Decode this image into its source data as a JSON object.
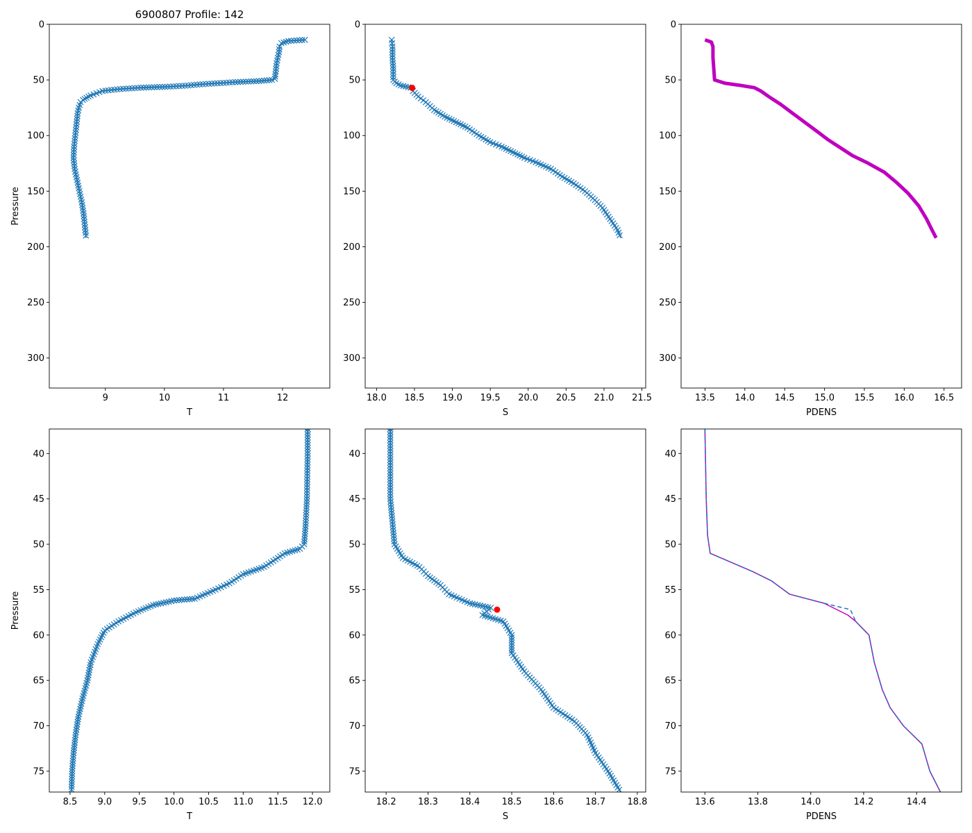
{
  "figure_title": "6900807 Profile: 142",
  "colors": {
    "series": "#1f77b4",
    "pdens": "#bf00bf",
    "marker": "#ff0000"
  },
  "chart_data": [
    {
      "type": "line",
      "title": "6900807 Profile: 142",
      "xlabel": "T",
      "ylabel": "Pressure",
      "xlim": [
        8.05,
        12.8
      ],
      "ylim": [
        327,
        0
      ],
      "y_inverted": true,
      "xticks": [
        9,
        10,
        11,
        12
      ],
      "xtick_labels": [
        "9",
        "10",
        "11",
        "12"
      ],
      "yticks": [
        0,
        50,
        100,
        150,
        200,
        250,
        300
      ],
      "ytick_labels": [
        "0",
        "50",
        "100",
        "150",
        "200",
        "250",
        "300"
      ],
      "series": [
        {
          "name": "T",
          "marker": "x",
          "color": "#1f77b4",
          "points": [
            [
              12.38,
              14
            ],
            [
              12.1,
              15
            ],
            [
              11.98,
              17
            ],
            [
              11.95,
              20
            ],
            [
              11.94,
              25
            ],
            [
              11.92,
              30
            ],
            [
              11.9,
              35
            ],
            [
              11.89,
              40
            ],
            [
              11.88,
              45
            ],
            [
              11.87,
              49
            ],
            [
              11.82,
              50
            ],
            [
              11.6,
              51
            ],
            [
              11.2,
              52
            ],
            [
              10.9,
              53
            ],
            [
              10.6,
              54
            ],
            [
              10.4,
              55
            ],
            [
              10.1,
              56
            ],
            [
              9.6,
              57
            ],
            [
              9.3,
              58
            ],
            [
              9.1,
              59
            ],
            [
              8.95,
              60
            ],
            [
              8.85,
              62
            ],
            [
              8.75,
              64
            ],
            [
              8.68,
              66
            ],
            [
              8.62,
              68
            ],
            [
              8.58,
              70
            ],
            [
              8.55,
              75
            ],
            [
              8.53,
              80
            ],
            [
              8.52,
              85
            ],
            [
              8.51,
              90
            ],
            [
              8.5,
              95
            ],
            [
              8.49,
              100
            ],
            [
              8.47,
              110
            ],
            [
              8.46,
              120
            ],
            [
              8.48,
              130
            ],
            [
              8.52,
              140
            ],
            [
              8.56,
              150
            ],
            [
              8.6,
              160
            ],
            [
              8.63,
              170
            ],
            [
              8.65,
              180
            ],
            [
              8.67,
              190
            ],
            [
              8.67,
              192
            ]
          ]
        }
      ]
    },
    {
      "type": "line",
      "title": "",
      "xlabel": "S",
      "ylabel": "",
      "xlim": [
        17.85,
        21.55
      ],
      "ylim": [
        327,
        0
      ],
      "y_inverted": true,
      "xticks": [
        18.0,
        18.5,
        19.0,
        19.5,
        20.0,
        20.5,
        21.0,
        21.5
      ],
      "xtick_labels": [
        "18.0",
        "18.5",
        "19.0",
        "19.5",
        "20.0",
        "20.5",
        "21.0",
        "21.5"
      ],
      "yticks": [
        0,
        50,
        100,
        150,
        200,
        250,
        300
      ],
      "ytick_labels": [
        "0",
        "50",
        "100",
        "150",
        "200",
        "250",
        "300"
      ],
      "series": [
        {
          "name": "S",
          "marker": "x",
          "color": "#1f77b4",
          "points": [
            [
              18.2,
              14
            ],
            [
              18.21,
              20
            ],
            [
              18.21,
              30
            ],
            [
              18.22,
              40
            ],
            [
              18.22,
              50
            ],
            [
              18.26,
              53
            ],
            [
              18.32,
              55
            ],
            [
              18.45,
              57
            ],
            [
              18.48,
              60
            ],
            [
              18.55,
              65
            ],
            [
              18.65,
              70
            ],
            [
              18.76,
              77
            ],
            [
              18.9,
              83
            ],
            [
              19.05,
              88
            ],
            [
              19.2,
              93
            ],
            [
              19.35,
              100
            ],
            [
              19.5,
              106
            ],
            [
              19.65,
              110
            ],
            [
              19.8,
              115
            ],
            [
              19.95,
              120
            ],
            [
              20.1,
              124
            ],
            [
              20.3,
              130
            ],
            [
              20.45,
              137
            ],
            [
              20.6,
              143
            ],
            [
              20.75,
              150
            ],
            [
              20.88,
              158
            ],
            [
              20.98,
              165
            ],
            [
              21.08,
              175
            ],
            [
              21.18,
              185
            ],
            [
              21.22,
              192
            ]
          ]
        }
      ],
      "marker_point": {
        "value": [
          18.47,
          57.2
        ],
        "color": "#ff0000"
      }
    },
    {
      "type": "line",
      "title": "",
      "xlabel": "PDENS",
      "ylabel": "",
      "xlim": [
        13.2,
        16.72
      ],
      "ylim": [
        327,
        0
      ],
      "y_inverted": true,
      "xticks": [
        13.5,
        14.0,
        14.5,
        15.0,
        15.5,
        16.0,
        16.5
      ],
      "xtick_labels": [
        "13.5",
        "14.0",
        "14.5",
        "15.0",
        "15.5",
        "16.0",
        "16.5"
      ],
      "yticks": [
        0,
        50,
        100,
        150,
        200,
        250,
        300
      ],
      "ytick_labels": [
        "0",
        "50",
        "100",
        "150",
        "200",
        "250",
        "300"
      ],
      "series": [
        {
          "name": "PDENS",
          "marker": "none",
          "color": "#bf00bf",
          "points": [
            [
              13.5,
              14
            ],
            [
              13.58,
              16
            ],
            [
              13.6,
              20
            ],
            [
              13.6,
              30
            ],
            [
              13.61,
              40
            ],
            [
              13.62,
              50
            ],
            [
              13.75,
              53
            ],
            [
              13.95,
              55
            ],
            [
              14.12,
              57
            ],
            [
              14.2,
              60
            ],
            [
              14.3,
              65
            ],
            [
              14.45,
              72
            ],
            [
              14.6,
              80
            ],
            [
              14.75,
              88
            ],
            [
              14.9,
              96
            ],
            [
              15.05,
              104
            ],
            [
              15.2,
              111
            ],
            [
              15.35,
              118
            ],
            [
              15.55,
              125
            ],
            [
              15.75,
              133
            ],
            [
              15.9,
              142
            ],
            [
              16.05,
              152
            ],
            [
              16.18,
              163
            ],
            [
              16.28,
              175
            ],
            [
              16.35,
              185
            ],
            [
              16.4,
              192
            ]
          ]
        }
      ]
    },
    {
      "type": "line",
      "title": "",
      "xlabel": "T",
      "ylabel": "Pressure",
      "xlim": [
        8.2,
        12.25
      ],
      "ylim": [
        77.3,
        37.3
      ],
      "y_inverted": true,
      "xticks": [
        8.5,
        9.0,
        9.5,
        10.0,
        10.5,
        11.0,
        11.5,
        12.0
      ],
      "xtick_labels": [
        "8.5",
        "9.0",
        "9.5",
        "10.0",
        "10.5",
        "11.0",
        "11.5",
        "12.0"
      ],
      "yticks": [
        40,
        45,
        50,
        55,
        60,
        65,
        70,
        75
      ],
      "ytick_labels": [
        "40",
        "45",
        "50",
        "55",
        "60",
        "65",
        "70",
        "75"
      ],
      "series": [
        {
          "name": "T",
          "marker": "x",
          "color": "#1f77b4",
          "points": [
            [
              11.93,
              37.3
            ],
            [
              11.93,
              40
            ],
            [
              11.92,
              45
            ],
            [
              11.9,
              48
            ],
            [
              11.88,
              50
            ],
            [
              11.82,
              50.5
            ],
            [
              11.6,
              51
            ],
            [
              11.3,
              52.5
            ],
            [
              11.0,
              53.3
            ],
            [
              10.8,
              54.3
            ],
            [
              10.6,
              55
            ],
            [
              10.3,
              56
            ],
            [
              10.0,
              56.2
            ],
            [
              9.7,
              56.7
            ],
            [
              9.45,
              57.5
            ],
            [
              9.2,
              58.5
            ],
            [
              9.0,
              59.5
            ],
            [
              8.9,
              61
            ],
            [
              8.8,
              63
            ],
            [
              8.75,
              65
            ],
            [
              8.68,
              67
            ],
            [
              8.62,
              69
            ],
            [
              8.58,
              71
            ],
            [
              8.55,
              73
            ],
            [
              8.53,
              75
            ],
            [
              8.52,
              77.3
            ]
          ]
        }
      ]
    },
    {
      "type": "line",
      "title": "",
      "xlabel": "S",
      "ylabel": "",
      "xlim": [
        18.15,
        18.82
      ],
      "ylim": [
        77.3,
        37.3
      ],
      "y_inverted": true,
      "xticks": [
        18.2,
        18.3,
        18.4,
        18.5,
        18.6,
        18.7,
        18.8
      ],
      "xtick_labels": [
        "18.2",
        "18.3",
        "18.4",
        "18.5",
        "18.6",
        "18.7",
        "18.8"
      ],
      "yticks": [
        40,
        45,
        50,
        55,
        60,
        65,
        70,
        75
      ],
      "ytick_labels": [
        "40",
        "45",
        "50",
        "55",
        "60",
        "65",
        "70",
        "75"
      ],
      "series": [
        {
          "name": "S",
          "marker": "x",
          "color": "#1f77b4",
          "points": [
            [
              18.21,
              37.3
            ],
            [
              18.21,
              45
            ],
            [
              18.22,
              50
            ],
            [
              18.24,
              51.5
            ],
            [
              18.28,
              52.5
            ],
            [
              18.3,
              53.5
            ],
            [
              18.33,
              54.5
            ],
            [
              18.35,
              55.5
            ],
            [
              18.4,
              56.5
            ],
            [
              18.45,
              57
            ],
            [
              18.43,
              57.8
            ],
            [
              18.48,
              58.5
            ],
            [
              18.5,
              60
            ],
            [
              18.5,
              62
            ],
            [
              18.53,
              64
            ],
            [
              18.57,
              66
            ],
            [
              18.6,
              68
            ],
            [
              18.65,
              69.5
            ],
            [
              18.68,
              71
            ],
            [
              18.7,
              73
            ],
            [
              18.73,
              75
            ],
            [
              18.76,
              77.3
            ]
          ]
        }
      ],
      "marker_point": {
        "value": [
          18.465,
          57.2
        ],
        "color": "#ff0000"
      }
    },
    {
      "type": "line",
      "title": "",
      "xlabel": "PDENS",
      "ylabel": "",
      "xlim": [
        13.51,
        14.57
      ],
      "ylim": [
        77.3,
        37.3
      ],
      "y_inverted": true,
      "xticks": [
        13.6,
        13.8,
        14.0,
        14.2,
        14.4
      ],
      "xtick_labels": [
        "13.6",
        "13.8",
        "14.0",
        "14.2",
        "14.4"
      ],
      "yticks": [
        40,
        45,
        50,
        55,
        60,
        65,
        70,
        75
      ],
      "ytick_labels": [
        "40",
        "45",
        "50",
        "55",
        "60",
        "65",
        "70",
        "75"
      ],
      "series": [
        {
          "name": "PDENS",
          "marker": "none",
          "color": "#bf00bf",
          "points": [
            [
              13.6,
              37.3
            ],
            [
              13.605,
              45
            ],
            [
              13.61,
              49
            ],
            [
              13.62,
              51
            ],
            [
              13.7,
              52
            ],
            [
              13.78,
              53
            ],
            [
              13.85,
              54
            ],
            [
              13.92,
              55.5
            ],
            [
              14.05,
              56.5
            ],
            [
              14.14,
              57.8
            ],
            [
              14.17,
              58.5
            ],
            [
              14.22,
              60
            ],
            [
              14.24,
              63
            ],
            [
              14.27,
              66
            ],
            [
              14.3,
              68
            ],
            [
              14.35,
              70
            ],
            [
              14.42,
              72
            ],
            [
              14.45,
              75
            ],
            [
              14.49,
              77.3
            ]
          ]
        },
        {
          "name": "PDENS (dashed)",
          "marker": "none",
          "color": "#1f77b4",
          "points": [
            [
              13.6,
              37.3
            ],
            [
              13.605,
              45
            ],
            [
              13.61,
              49
            ],
            [
              13.62,
              51
            ],
            [
              13.7,
              52
            ],
            [
              13.78,
              53
            ],
            [
              13.85,
              54
            ],
            [
              13.92,
              55.5
            ],
            [
              14.05,
              56.5
            ],
            [
              14.15,
              57.2
            ],
            [
              14.17,
              58.5
            ],
            [
              14.22,
              60
            ],
            [
              14.24,
              63
            ],
            [
              14.27,
              66
            ],
            [
              14.3,
              68
            ],
            [
              14.35,
              70
            ],
            [
              14.42,
              72
            ],
            [
              14.45,
              75
            ],
            [
              14.49,
              77.3
            ]
          ]
        }
      ]
    }
  ]
}
